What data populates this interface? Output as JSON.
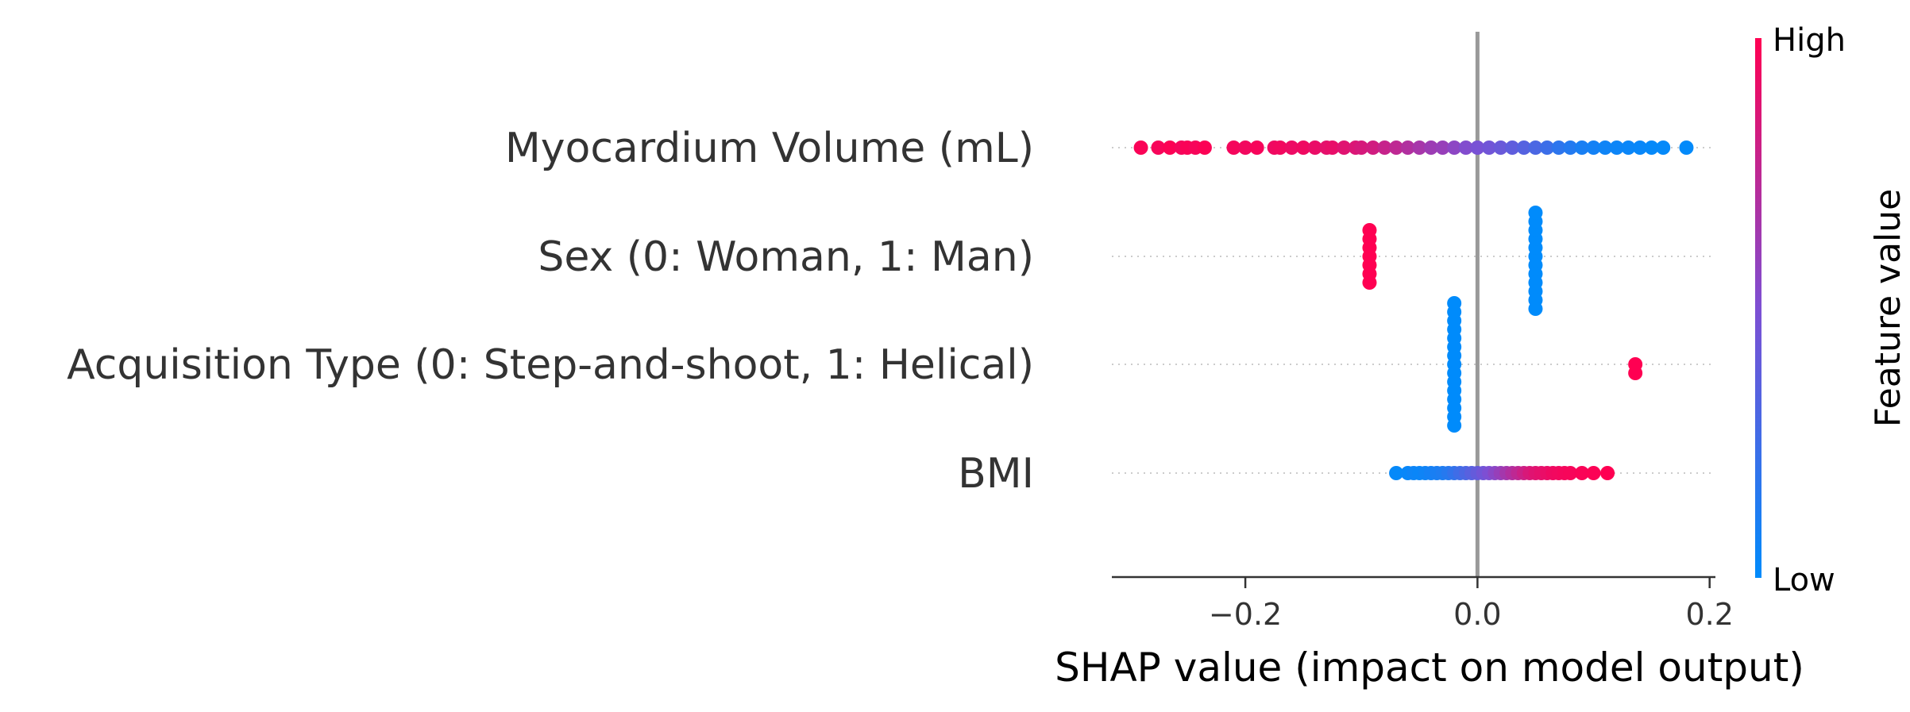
{
  "chart_data": {
    "type": "scatter",
    "subtype": "shap-beeswarm",
    "xlabel": "SHAP value (impact on model output)",
    "x_ticks": [
      {
        "value": -0.2,
        "label": "−0.2"
      },
      {
        "value": 0.0,
        "label": "0.0"
      },
      {
        "value": 0.2,
        "label": "0.2"
      }
    ],
    "xlim": [
      -0.315,
      0.205
    ],
    "zero_line": 0.0,
    "features": [
      {
        "name": "Myocardium Volume (mL)",
        "spread": [
          {
            "x": -0.29,
            "fv": 0.98
          },
          {
            "x": -0.275,
            "fv": 0.97
          },
          {
            "x": -0.265,
            "fv": 0.99
          },
          {
            "x": -0.255,
            "fv": 0.96
          },
          {
            "x": -0.25,
            "fv": 0.98
          },
          {
            "x": -0.243,
            "fv": 0.97
          },
          {
            "x": -0.235,
            "fv": 0.99
          },
          {
            "x": -0.21,
            "fv": 0.96
          },
          {
            "x": -0.2,
            "fv": 0.95
          },
          {
            "x": -0.19,
            "fv": 0.97
          },
          {
            "x": -0.175,
            "fv": 0.94
          },
          {
            "x": -0.17,
            "fv": 0.95
          },
          {
            "x": -0.16,
            "fv": 0.93
          },
          {
            "x": -0.15,
            "fv": 0.94
          },
          {
            "x": -0.14,
            "fv": 0.92
          },
          {
            "x": -0.13,
            "fv": 0.9
          },
          {
            "x": -0.125,
            "fv": 0.91
          },
          {
            "x": -0.115,
            "fv": 0.88
          },
          {
            "x": -0.105,
            "fv": 0.86
          },
          {
            "x": -0.1,
            "fv": 0.84
          },
          {
            "x": -0.09,
            "fv": 0.82
          },
          {
            "x": -0.08,
            "fv": 0.78
          },
          {
            "x": -0.07,
            "fv": 0.75
          },
          {
            "x": -0.06,
            "fv": 0.7
          },
          {
            "x": -0.05,
            "fv": 0.66
          },
          {
            "x": -0.04,
            "fv": 0.62
          },
          {
            "x": -0.03,
            "fv": 0.6
          },
          {
            "x": -0.02,
            "fv": 0.56
          },
          {
            "x": -0.01,
            "fv": 0.52
          },
          {
            "x": 0.0,
            "fv": 0.48
          },
          {
            "x": 0.01,
            "fv": 0.45
          },
          {
            "x": 0.02,
            "fv": 0.42
          },
          {
            "x": 0.03,
            "fv": 0.38
          },
          {
            "x": 0.04,
            "fv": 0.34
          },
          {
            "x": 0.05,
            "fv": 0.3
          },
          {
            "x": 0.06,
            "fv": 0.24
          },
          {
            "x": 0.07,
            "fv": 0.18
          },
          {
            "x": 0.08,
            "fv": 0.14
          },
          {
            "x": 0.09,
            "fv": 0.1
          },
          {
            "x": 0.1,
            "fv": 0.08
          },
          {
            "x": 0.11,
            "fv": 0.06
          },
          {
            "x": 0.12,
            "fv": 0.05
          },
          {
            "x": 0.13,
            "fv": 0.04
          },
          {
            "x": 0.14,
            "fv": 0.03
          },
          {
            "x": 0.15,
            "fv": 0.02
          },
          {
            "x": 0.16,
            "fv": 0.02
          },
          {
            "x": 0.18,
            "fv": 0.01
          }
        ]
      },
      {
        "name": "Sex (0: Woman, 1: Man)",
        "spread": [
          {
            "x": -0.093,
            "fv": 1.0
          },
          {
            "x": -0.093,
            "fv": 1.0
          },
          {
            "x": -0.093,
            "fv": 1.0
          },
          {
            "x": -0.093,
            "fv": 1.0
          },
          {
            "x": -0.093,
            "fv": 1.0
          },
          {
            "x": -0.093,
            "fv": 1.0
          },
          {
            "x": -0.093,
            "fv": 1.0
          },
          {
            "x": 0.05,
            "fv": 0.0
          },
          {
            "x": 0.05,
            "fv": 0.0
          },
          {
            "x": 0.05,
            "fv": 0.0
          },
          {
            "x": 0.05,
            "fv": 0.0
          },
          {
            "x": 0.05,
            "fv": 0.0
          },
          {
            "x": 0.05,
            "fv": 0.0
          },
          {
            "x": 0.05,
            "fv": 0.0
          },
          {
            "x": 0.05,
            "fv": 0.0
          },
          {
            "x": 0.05,
            "fv": 0.0
          },
          {
            "x": 0.05,
            "fv": 0.0
          },
          {
            "x": 0.05,
            "fv": 0.0
          },
          {
            "x": 0.05,
            "fv": 0.0
          }
        ]
      },
      {
        "name": "Acquisition Type (0: Step-and-shoot, 1: Helical)",
        "spread": [
          {
            "x": -0.02,
            "fv": 0.0
          },
          {
            "x": -0.02,
            "fv": 0.0
          },
          {
            "x": -0.02,
            "fv": 0.0
          },
          {
            "x": -0.02,
            "fv": 0.0
          },
          {
            "x": -0.02,
            "fv": 0.0
          },
          {
            "x": -0.02,
            "fv": 0.0
          },
          {
            "x": -0.02,
            "fv": 0.0
          },
          {
            "x": -0.02,
            "fv": 0.0
          },
          {
            "x": -0.02,
            "fv": 0.0
          },
          {
            "x": -0.02,
            "fv": 0.0
          },
          {
            "x": -0.02,
            "fv": 0.0
          },
          {
            "x": -0.02,
            "fv": 0.0
          },
          {
            "x": -0.02,
            "fv": 0.0
          },
          {
            "x": -0.02,
            "fv": 0.0
          },
          {
            "x": -0.02,
            "fv": 0.0
          },
          {
            "x": 0.136,
            "fv": 1.0
          },
          {
            "x": 0.136,
            "fv": 1.0
          }
        ]
      },
      {
        "name": "BMI",
        "spread": [
          {
            "x": -0.07,
            "fv": 0.02
          },
          {
            "x": -0.06,
            "fv": 0.03
          },
          {
            "x": -0.055,
            "fv": 0.05
          },
          {
            "x": -0.05,
            "fv": 0.04
          },
          {
            "x": -0.045,
            "fv": 0.06
          },
          {
            "x": -0.04,
            "fv": 0.08
          },
          {
            "x": -0.035,
            "fv": 0.1
          },
          {
            "x": -0.03,
            "fv": 0.12
          },
          {
            "x": -0.025,
            "fv": 0.15
          },
          {
            "x": -0.02,
            "fv": 0.2
          },
          {
            "x": -0.015,
            "fv": 0.25
          },
          {
            "x": -0.01,
            "fv": 0.3
          },
          {
            "x": -0.005,
            "fv": 0.35
          },
          {
            "x": 0.0,
            "fv": 0.4
          },
          {
            "x": 0.005,
            "fv": 0.45
          },
          {
            "x": 0.01,
            "fv": 0.5
          },
          {
            "x": 0.015,
            "fv": 0.55
          },
          {
            "x": 0.02,
            "fv": 0.6
          },
          {
            "x": 0.025,
            "fv": 0.65
          },
          {
            "x": 0.03,
            "fv": 0.7
          },
          {
            "x": 0.035,
            "fv": 0.75
          },
          {
            "x": 0.04,
            "fv": 0.8
          },
          {
            "x": 0.045,
            "fv": 0.85
          },
          {
            "x": 0.05,
            "fv": 0.88
          },
          {
            "x": 0.055,
            "fv": 0.9
          },
          {
            "x": 0.06,
            "fv": 0.92
          },
          {
            "x": 0.065,
            "fv": 0.94
          },
          {
            "x": 0.07,
            "fv": 0.95
          },
          {
            "x": 0.075,
            "fv": 0.96
          },
          {
            "x": 0.08,
            "fv": 0.97
          },
          {
            "x": 0.09,
            "fv": 0.98
          },
          {
            "x": 0.1,
            "fv": 0.99
          },
          {
            "x": 0.112,
            "fv": 1.0
          }
        ]
      }
    ],
    "colorbar": {
      "title": "Feature value",
      "high_label": "High",
      "low_label": "Low",
      "high_color": "#ff0052",
      "low_color": "#008bfb"
    },
    "grid": false,
    "legend_placement": "right"
  }
}
